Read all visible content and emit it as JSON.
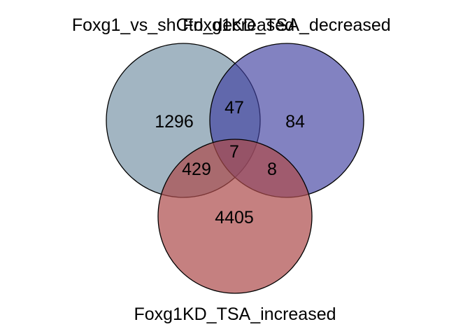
{
  "sets": [
    {
      "label": "Foxg1_vs_shCtrl_decreased",
      "color": "#7a96a8"
    },
    {
      "label": "Foxg1KD_TSA_decreased",
      "color": "#3f3f9f"
    },
    {
      "label": "Foxg1KD_TSA_increased",
      "color": "#ad4a4a"
    }
  ],
  "regions": {
    "only_a": "1296",
    "only_b": "84",
    "only_c": "4405",
    "ab": "47",
    "ac": "429",
    "bc": "8",
    "abc": "7"
  }
}
